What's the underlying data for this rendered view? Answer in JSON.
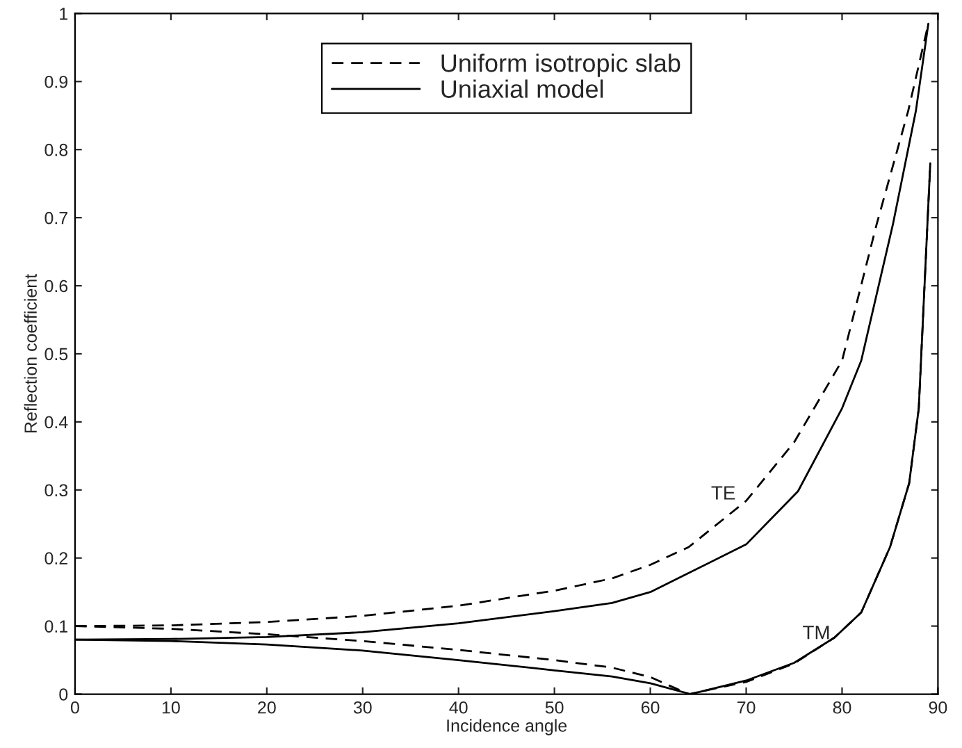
{
  "chart_data": {
    "type": "line",
    "xlabel": "Incidence angle",
    "ylabel": "Reflection coefficient",
    "xlim": [
      0,
      90
    ],
    "ylim": [
      0,
      1
    ],
    "xticks": [
      0,
      10,
      20,
      30,
      40,
      50,
      60,
      70,
      80,
      90
    ],
    "yticks": [
      0,
      0.1,
      0.2,
      0.3,
      0.4,
      0.5,
      0.6,
      0.7,
      0.8,
      0.9,
      1
    ],
    "grid": false,
    "legend": "top",
    "marker": "none",
    "series": [
      {
        "name": "Uniform isotropic slab",
        "color": "#000000",
        "line_style": "dashed",
        "x": [
          0,
          10,
          20,
          30,
          40,
          50,
          56,
          60,
          64,
          70,
          75,
          80,
          83.6,
          86.9,
          89
        ],
        "values": [
          0.1,
          0.101,
          0.106,
          0.115,
          0.13,
          0.152,
          0.17,
          0.19,
          0.216,
          0.284,
          0.37,
          0.49,
          0.69,
          0.857,
          0.985
        ]
      },
      {
        "name": "Uniaxial model",
        "color": "#000000",
        "line_style": "solid",
        "x": [
          0,
          10,
          20,
          30,
          40,
          50,
          56,
          60,
          64,
          70,
          75.4,
          80,
          82,
          85.3,
          87.7,
          89
        ],
        "values": [
          0.08,
          0.081,
          0.084,
          0.091,
          0.104,
          0.122,
          0.134,
          0.15,
          0.178,
          0.22,
          0.298,
          0.42,
          0.49,
          0.69,
          0.857,
          0.985
        ]
      },
      {
        "color": "#000000",
        "line_style": "dashed",
        "x": [
          0,
          10,
          20,
          30,
          40,
          50,
          56,
          60,
          64,
          70,
          75,
          79.2,
          82,
          85,
          87,
          88,
          89.2
        ],
        "values": [
          0.1,
          0.096,
          0.088,
          0.078,
          0.065,
          0.05,
          0.039,
          0.025,
          0,
          0.018,
          0.045,
          0.083,
          0.12,
          0.216,
          0.31,
          0.42,
          0.78
        ]
      },
      {
        "color": "#000000",
        "line_style": "solid",
        "x": [
          0,
          10,
          20,
          30,
          40,
          50,
          56,
          60,
          64.2,
          70,
          75,
          79.2,
          82,
          85,
          87,
          88,
          89.2
        ],
        "values": [
          0.08,
          0.078,
          0.073,
          0.064,
          0.05,
          0.035,
          0.026,
          0.016,
          0,
          0.02,
          0.046,
          0.083,
          0.12,
          0.216,
          0.31,
          0.42,
          0.78
        ]
      }
    ],
    "annotations": [
      "TE",
      "TM"
    ]
  }
}
